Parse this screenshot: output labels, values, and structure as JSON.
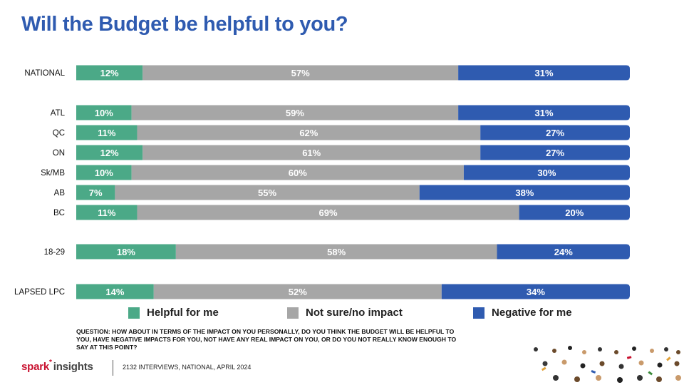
{
  "title": "Will the Budget be helpful to you?",
  "chart_data": {
    "type": "bar",
    "stacked": true,
    "orientation": "horizontal",
    "categories": [
      "NATIONAL",
      "ATL",
      "QC",
      "ON",
      "Sk/MB",
      "AB",
      "BC",
      "18-29",
      "LAPSED LPC"
    ],
    "series": [
      {
        "name": "Helpful for me",
        "color": "#4ba987",
        "values": [
          12,
          10,
          11,
          12,
          10,
          7,
          11,
          18,
          14
        ]
      },
      {
        "name": "Not sure/no impact",
        "color": "#a6a6a6",
        "values": [
          57,
          59,
          62,
          61,
          60,
          55,
          69,
          58,
          52
        ]
      },
      {
        "name": "Negative for me",
        "color": "#2f5bb0",
        "values": [
          31,
          31,
          27,
          27,
          30,
          38,
          20,
          24,
          34
        ]
      }
    ],
    "labels": [
      [
        "12%",
        "57%",
        "31%"
      ],
      [
        "10%",
        "59%",
        "31%"
      ],
      [
        "11%",
        "62%",
        "27%"
      ],
      [
        "12%",
        "61%",
        "27%"
      ],
      [
        "10%",
        "60%",
        "30%"
      ],
      [
        "7%",
        "55%",
        "38%"
      ],
      [
        "11%",
        "69%",
        "20%"
      ],
      [
        "18%",
        "58%",
        "24%"
      ],
      [
        "14%",
        "52%",
        "34%"
      ]
    ],
    "legend": "bottom"
  },
  "question": "QUESTION: HOW ABOUT IN TERMS OF THE IMPACT ON YOU PERSONALLY, DO YOU THINK THE BUDGET WILL BE HELPFUL TO YOU, HAVE NEGATIVE IMPACTS FOR YOU, NOT HAVE ANY REAL IMPACT ON YOU, OR DO YOU NOT REALLY KNOW ENOUGH TO SAY AT THIS POINT?",
  "brand": {
    "part1": "spark",
    "part2": "insights"
  },
  "footnote": "2132 INTERVIEWS, NATIONAL, APRIL 2024"
}
